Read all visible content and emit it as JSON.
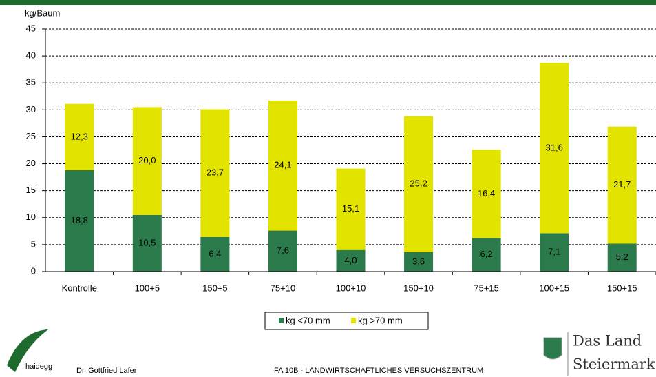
{
  "chart_data": {
    "type": "stacked-bar",
    "y_label": "kg/Baum",
    "categories": [
      "Kontrolle",
      "100+5",
      "150+5",
      "75+10",
      "100+10",
      "150+10",
      "75+15",
      "100+15",
      "150+15"
    ],
    "series": [
      {
        "name": "kg <70 mm",
        "color": "#2a7a4c",
        "values": [
          18.8,
          10.5,
          6.4,
          7.6,
          4.0,
          3.6,
          6.2,
          7.1,
          5.2
        ],
        "value_labels": [
          "18,8",
          "10,5",
          "6,4",
          "7,6",
          "4,0",
          "3,6",
          "6,2",
          "7,1",
          "5,2"
        ]
      },
      {
        "name": "kg >70 mm",
        "color": "#e3e300",
        "values": [
          12.3,
          20.0,
          23.7,
          24.1,
          15.1,
          25.2,
          16.4,
          31.6,
          21.7
        ],
        "value_labels": [
          "12,3",
          "20,0",
          "23,7",
          "24,1",
          "15,1",
          "25,2",
          "16,4",
          "31,6",
          "21,7"
        ]
      }
    ],
    "ylim": [
      0,
      45
    ],
    "yticks": [
      0,
      5,
      10,
      15,
      20,
      25,
      30,
      35,
      40,
      45
    ],
    "grid": true
  },
  "footer": {
    "logo": "haidegg",
    "author": "Dr. Gottfried Lafer",
    "institute": "FA 10B - LANDWIRTSCHAFTLICHES VERSUCHSZENTRUM",
    "brand_line1": "Das Land",
    "brand_line2": "Steiermark"
  }
}
